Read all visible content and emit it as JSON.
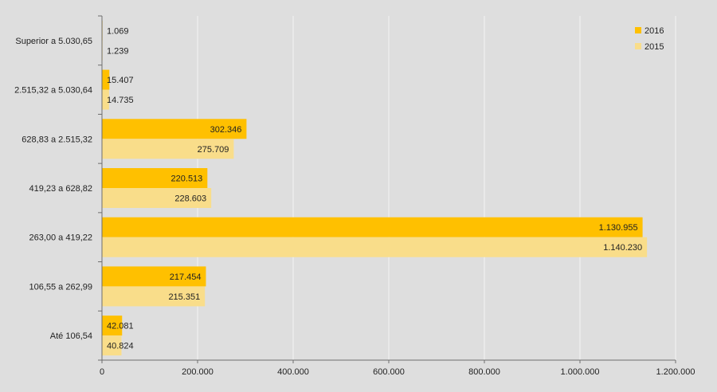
{
  "chart_data": {
    "type": "bar",
    "orientation": "horizontal",
    "categories": [
      "Superior a 5.030,65",
      "2.515,32 a 5.030,64",
      "628,83 a 2.515,32",
      "419,23 a 628,82",
      "263,00 a 419,22",
      "106,55 a 262,99",
      "Até 106,54"
    ],
    "series": [
      {
        "name": "2016",
        "color": "#ffc000",
        "values": [
          1069,
          15407,
          302346,
          220513,
          1130955,
          217454,
          42081
        ],
        "labels": [
          "1.069",
          "15.407",
          "302.346",
          "220.513",
          "1.130.955",
          "217.454",
          "42.081"
        ]
      },
      {
        "name": "2015",
        "color": "#f9dd8a",
        "values": [
          1239,
          14735,
          275709,
          228603,
          1140230,
          215351,
          40824
        ],
        "labels": [
          "1.239",
          "14.735",
          "275.709",
          "228.603",
          "1.140.230",
          "215.351",
          "40.824"
        ]
      }
    ],
    "xlim": [
      0,
      1200000
    ],
    "xticks": [
      0,
      200000,
      400000,
      600000,
      800000,
      1000000,
      1200000
    ],
    "xtick_labels": [
      "0",
      "200.000",
      "400.000",
      "600.000",
      "800.000",
      "1.000.000",
      "1.200.000"
    ],
    "grid": true,
    "legend": {
      "position": "top-right"
    }
  }
}
